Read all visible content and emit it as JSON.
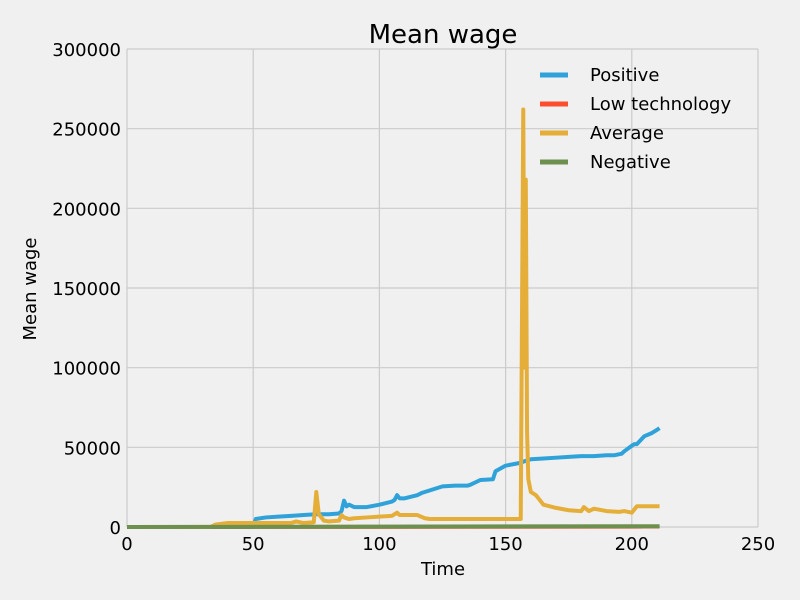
{
  "chart_data": {
    "type": "line",
    "title": "Mean wage",
    "xlabel": "Time",
    "ylabel": "Mean wage",
    "xlim": [
      0,
      250
    ],
    "ylim": [
      0,
      300000
    ],
    "xticks": [
      0,
      50,
      100,
      150,
      200,
      250
    ],
    "yticks": [
      0,
      50000,
      100000,
      150000,
      200000,
      250000,
      300000
    ],
    "xtick_labels": [
      "0",
      "50",
      "100",
      "150",
      "200",
      "250"
    ],
    "ytick_labels": [
      "0",
      "50000",
      "100000",
      "150000",
      "200000",
      "250000",
      "300000"
    ],
    "grid": true,
    "legend_position": "top-right",
    "series": [
      {
        "name": "Positive",
        "color": "#30a2da",
        "x": [
          0,
          50,
          51,
          55,
          60,
          65,
          70,
          75,
          80,
          84,
          85,
          86,
          87,
          88,
          90,
          95,
          100,
          105,
          106,
          107,
          108,
          110,
          115,
          117,
          120,
          125,
          130,
          135,
          136,
          140,
          145,
          146,
          150,
          155,
          157,
          160,
          165,
          170,
          175,
          180,
          185,
          190,
          193,
          196,
          197,
          200,
          201,
          202,
          205,
          208,
          210,
          211
        ],
        "y": [
          0,
          0,
          5000,
          6000,
          6500,
          7000,
          7500,
          8000,
          8000,
          8500,
          10000,
          16500,
          13000,
          14000,
          12500,
          12500,
          14000,
          16000,
          17000,
          20000,
          18000,
          18000,
          20000,
          21500,
          23000,
          25500,
          26000,
          26000,
          26500,
          29500,
          30000,
          35000,
          38500,
          40000,
          41000,
          42500,
          43000,
          43500,
          44000,
          44500,
          44500,
          45000,
          45000,
          46000,
          47500,
          51000,
          52000,
          52000,
          57000,
          59000,
          61000,
          62000
        ]
      },
      {
        "name": "Low technology",
        "color": "#fc4f30",
        "x": [
          0,
          200,
          205,
          211
        ],
        "y": [
          0,
          200,
          300,
          300
        ]
      },
      {
        "name": "Average",
        "color": "#e5ae38",
        "x": [
          0,
          33,
          35,
          40,
          50,
          60,
          65,
          67,
          70,
          74,
          75,
          76,
          78,
          80,
          84,
          85,
          86,
          88,
          90,
          95,
          100,
          105,
          107,
          108,
          110,
          115,
          118,
          120,
          125,
          130,
          140,
          150,
          155,
          156,
          157,
          157.5,
          158,
          158.5,
          159,
          160,
          162,
          165,
          170,
          175,
          180,
          181,
          183,
          185,
          190,
          195,
          197,
          200,
          202,
          205,
          211
        ],
        "y": [
          0,
          0,
          1500,
          2500,
          2500,
          2500,
          2500,
          3500,
          2500,
          3000,
          22000,
          8000,
          4000,
          3500,
          4000,
          7500,
          6000,
          5000,
          5500,
          6000,
          6500,
          7000,
          9000,
          7500,
          7500,
          7500,
          5500,
          5000,
          5000,
          5000,
          5000,
          5000,
          5000,
          5000,
          262000,
          100000,
          218000,
          60000,
          30000,
          22000,
          20000,
          14000,
          12000,
          10500,
          10000,
          12500,
          10000,
          11500,
          10000,
          9500,
          10000,
          9000,
          13000,
          13000,
          13000
        ]
      },
      {
        "name": "Negative",
        "color": "#6d904f",
        "x": [
          0,
          100,
          150,
          200,
          211
        ],
        "y": [
          0,
          200,
          400,
          500,
          500
        ]
      }
    ]
  }
}
